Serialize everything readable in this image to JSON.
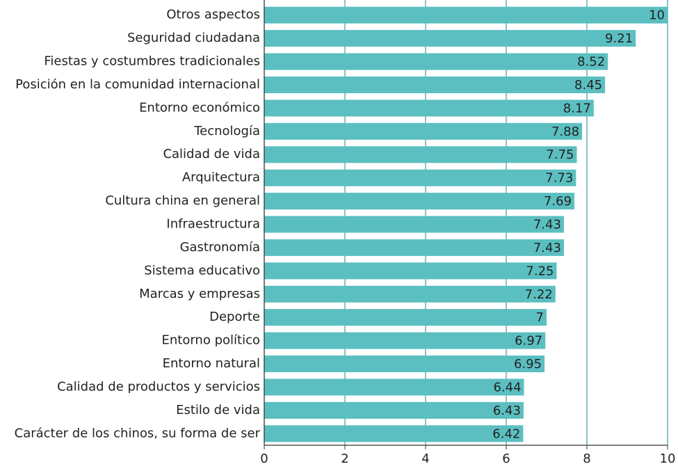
{
  "chart_data": {
    "type": "bar",
    "orientation": "horizontal",
    "categories": [
      "Otros aspectos",
      "Seguridad ciudadana",
      "Fiestas y costumbres tradicionales",
      "Posición en la comunidad internacional",
      "Entorno económico",
      "Tecnología",
      "Calidad de vida",
      "Arquitectura",
      "Cultura china en general",
      "Infraestructura",
      "Gastronomía",
      "Sistema educativo",
      "Marcas y empresas",
      "Deporte",
      "Entorno político",
      "Entorno natural",
      "Calidad de productos y servicios",
      "Estilo de vida",
      "Carácter de los chinos, su forma de ser"
    ],
    "values": [
      10,
      9.21,
      8.52,
      8.45,
      8.17,
      7.88,
      7.75,
      7.73,
      7.69,
      7.43,
      7.43,
      7.25,
      7.22,
      7,
      6.97,
      6.95,
      6.44,
      6.43,
      6.42
    ],
    "color": "#5bbfc1",
    "xlim": [
      0,
      10
    ],
    "xticks": [
      0,
      2,
      4,
      6,
      8,
      10
    ],
    "grid": true
  }
}
